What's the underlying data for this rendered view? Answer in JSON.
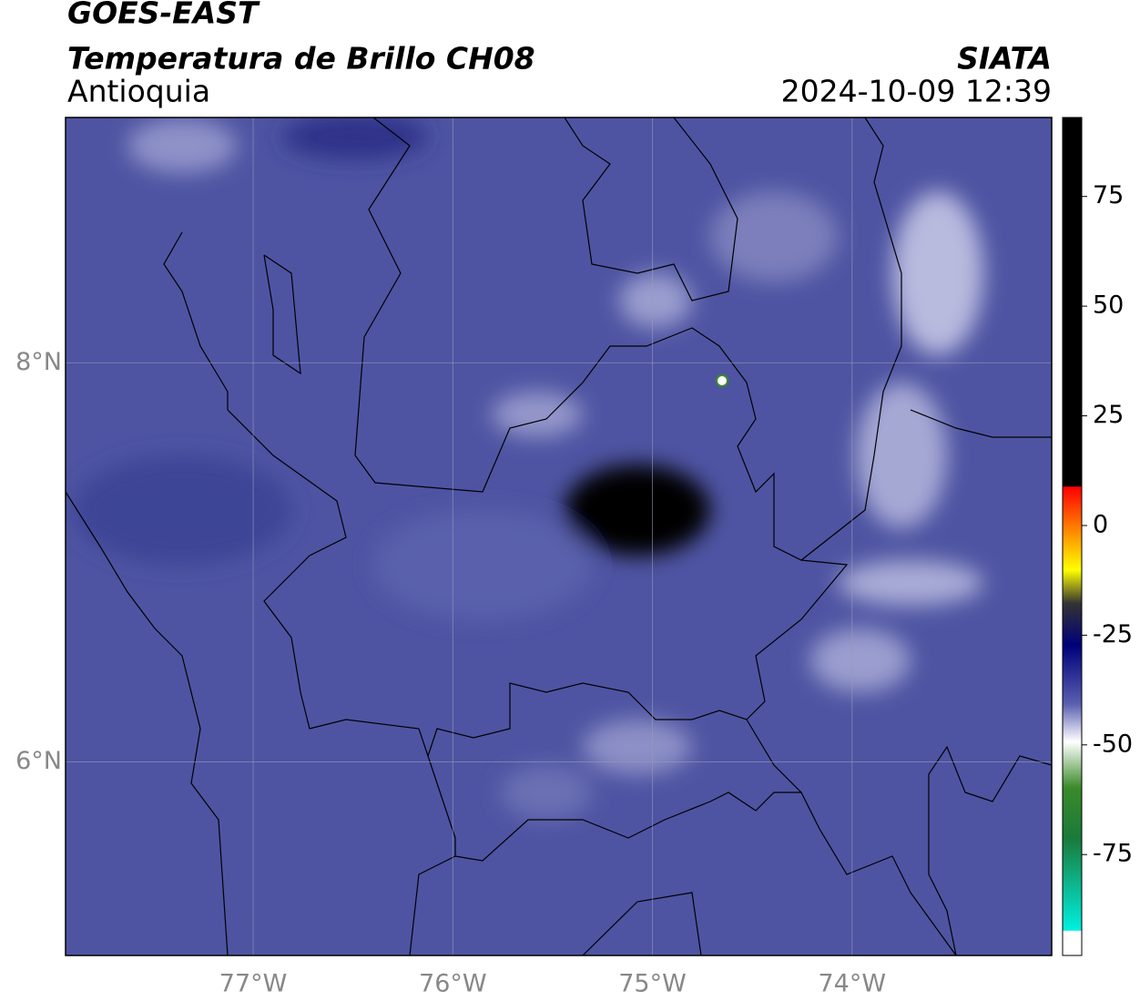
{
  "header": {
    "title": "GOES-EAST",
    "product": "Temperatura de Brillo CH08",
    "region": "Antioquia",
    "source": "SIATA",
    "datetime": "2024-10-09 12:39"
  },
  "map": {
    "lonlim": [
      -77.94,
      -73.0
    ],
    "latlim": [
      5.03,
      9.23
    ],
    "lonticks": [
      {
        "value": -77,
        "label": "77°W"
      },
      {
        "value": -76,
        "label": "76°W"
      },
      {
        "value": -75,
        "label": "75°W"
      },
      {
        "value": -74,
        "label": "74°W"
      }
    ],
    "latticks": [
      {
        "value": 8,
        "label": "8°N"
      },
      {
        "value": 6,
        "label": "6°N"
      }
    ],
    "grid": true
  },
  "colorbar": {
    "lim": [
      -98,
      93
    ],
    "ticks": [
      75,
      50,
      25,
      0,
      -25,
      -50,
      -75
    ]
  }
}
